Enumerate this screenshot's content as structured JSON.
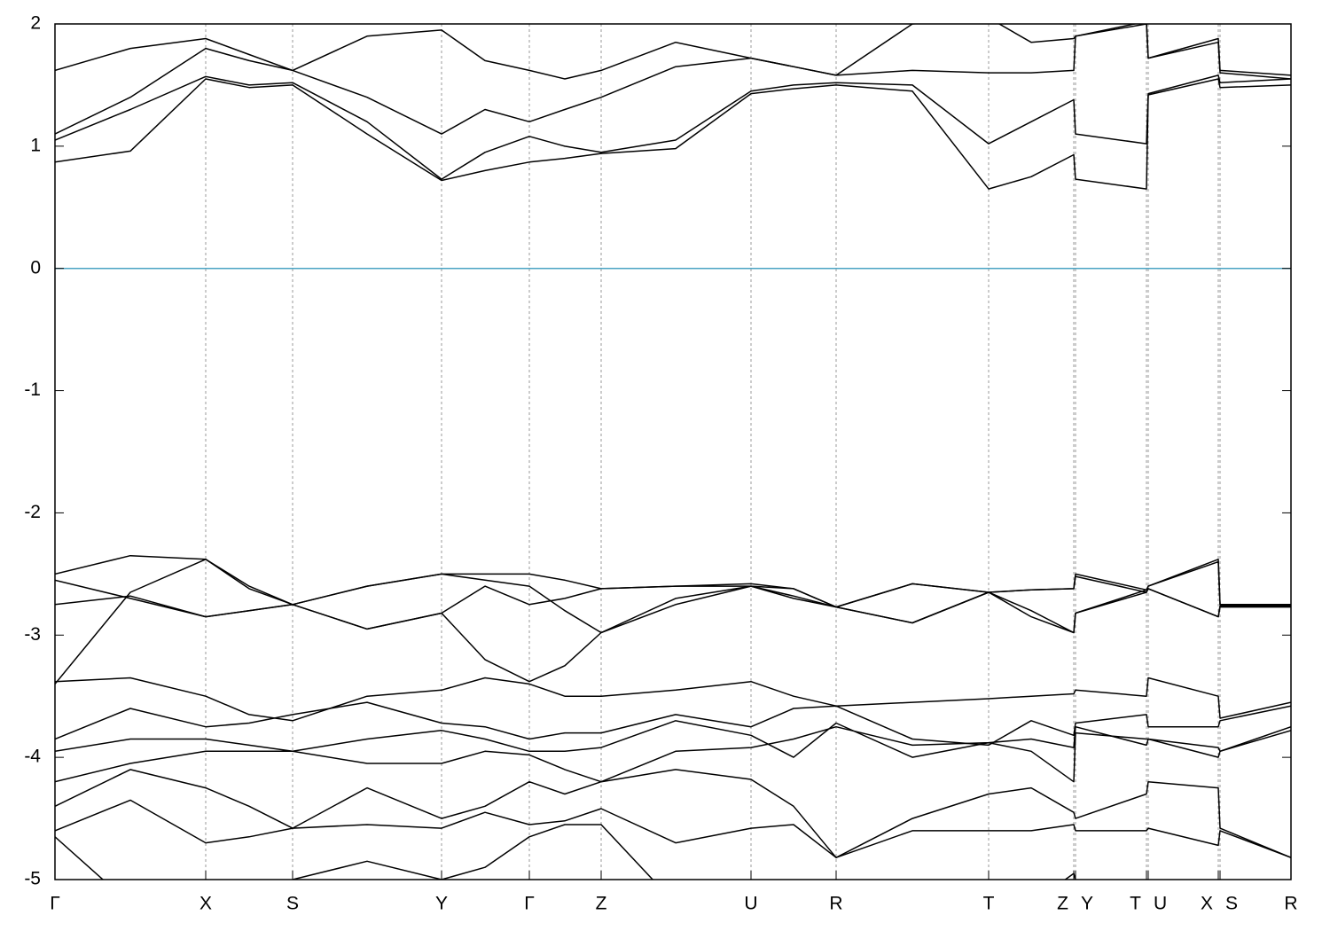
{
  "chart_data": {
    "type": "line",
    "color": "#000000",
    "fermi_level": 0,
    "fermi_color": "#4aa3c3",
    "x": [
      0,
      0.85,
      1.7,
      2.19,
      2.68,
      3.52,
      4.36,
      4.85,
      5.35,
      5.75,
      6.16,
      7.0,
      7.85,
      8.33,
      8.81,
      9.67,
      10.53,
      11.01,
      11.49,
      11.51,
      12.31,
      12.33,
      13.12,
      13.14,
      13.94
    ],
    "xlim": [
      0,
      13.94
    ],
    "xticks": [
      {
        "value": 0,
        "label": "Γ"
      },
      {
        "value": 1.7,
        "label": "X"
      },
      {
        "value": 2.68,
        "label": "S"
      },
      {
        "value": 4.36,
        "label": "Y"
      },
      {
        "value": 5.35,
        "label": "Γ"
      },
      {
        "value": 6.16,
        "label": "Z"
      },
      {
        "value": 7.85,
        "label": "U"
      },
      {
        "value": 8.81,
        "label": "R"
      },
      {
        "value": 10.53,
        "label": "T"
      },
      {
        "value": 11.49,
        "label": "Z"
      },
      {
        "value": 11.51,
        "label": "Y"
      },
      {
        "value": 12.31,
        "label": "T"
      },
      {
        "value": 12.33,
        "label": "U"
      },
      {
        "value": 13.12,
        "label": "X"
      },
      {
        "value": 13.14,
        "label": "S"
      },
      {
        "value": 13.94,
        "label": "R"
      }
    ],
    "xgrid": true,
    "ylim": [
      -5,
      2
    ],
    "yticks": [
      -5,
      -4,
      -3,
      -2,
      -1,
      0,
      1,
      2
    ],
    "series": [
      {
        "values": [
          0.87,
          0.96,
          1.55,
          1.48,
          1.5,
          1.1,
          0.72,
          0.8,
          0.87,
          0.9,
          0.94,
          0.98,
          1.43,
          1.47,
          1.5,
          1.45,
          0.65,
          0.75,
          0.93,
          0.73,
          0.65,
          1.42,
          1.55,
          1.48,
          1.5
        ]
      },
      {
        "values": [
          1.05,
          1.3,
          1.57,
          1.5,
          1.52,
          1.2,
          0.73,
          0.95,
          1.08,
          1.0,
          0.95,
          1.05,
          1.45,
          1.5,
          1.52,
          1.5,
          1.02,
          1.2,
          1.38,
          1.1,
          1.02,
          1.43,
          1.58,
          1.52,
          1.55
        ]
      },
      {
        "values": [
          1.1,
          1.4,
          1.8,
          1.7,
          1.62,
          1.4,
          1.1,
          1.3,
          1.2,
          1.3,
          1.4,
          1.65,
          1.72,
          1.65,
          1.58,
          1.62,
          1.6,
          1.6,
          1.62,
          1.9,
          2.0,
          1.72,
          1.88,
          1.62,
          1.58
        ]
      },
      {
        "values": [
          1.62,
          1.8,
          1.88,
          1.75,
          1.62,
          1.9,
          1.95,
          1.7,
          1.62,
          1.55,
          1.62,
          1.85,
          1.72,
          1.65,
          1.58,
          2.0,
          2.05,
          1.85,
          1.88,
          1.9,
          2.02,
          1.72,
          1.85,
          1.6,
          1.55
        ]
      },
      {
        "values": [
          -2.5,
          -2.35,
          -2.38,
          -2.6,
          -2.75,
          -2.6,
          -2.5,
          -2.5,
          -2.5,
          -2.55,
          -2.62,
          -2.6,
          -2.58,
          -2.62,
          -2.77,
          -2.58,
          -2.65,
          -2.63,
          -2.62,
          -2.5,
          -2.63,
          -2.6,
          -2.38,
          -2.75,
          -2.75
        ]
      },
      {
        "values": [
          -2.55,
          -2.7,
          -2.85,
          -2.8,
          -2.75,
          -2.95,
          -2.82,
          -2.6,
          -2.75,
          -2.7,
          -2.62,
          -2.6,
          -2.6,
          -2.7,
          -2.77,
          -2.9,
          -2.65,
          -2.85,
          -2.98,
          -2.82,
          -2.63,
          -2.62,
          -2.85,
          -2.76,
          -2.76
        ]
      },
      {
        "values": [
          -2.75,
          -2.68,
          -2.85,
          -2.8,
          -2.75,
          -2.95,
          -2.82,
          -3.2,
          -3.38,
          -3.25,
          -2.98,
          -2.75,
          -2.6,
          -2.68,
          -2.77,
          -2.9,
          -2.65,
          -2.8,
          -2.98,
          -2.82,
          -2.65,
          -2.62,
          -2.85,
          -2.77,
          -2.77
        ]
      },
      {
        "values": [
          -3.4,
          -2.65,
          -2.38,
          -2.62,
          -2.75,
          -2.6,
          -2.5,
          -2.55,
          -2.6,
          -2.8,
          -2.98,
          -2.7,
          -2.6,
          -2.62,
          -2.77,
          -2.58,
          -2.65,
          -2.63,
          -2.62,
          -2.52,
          -2.65,
          -2.6,
          -2.4,
          -2.75,
          -2.75
        ]
      },
      {
        "values": [
          -3.38,
          -3.35,
          -3.5,
          -3.65,
          -3.7,
          -3.5,
          -3.45,
          -3.35,
          -3.4,
          -3.5,
          -3.5,
          -3.45,
          -3.38,
          -3.5,
          -3.58,
          -3.55,
          -3.52,
          -3.5,
          -3.48,
          -3.45,
          -3.5,
          -3.35,
          -3.5,
          -3.68,
          -3.55
        ]
      },
      {
        "values": [
          -3.85,
          -3.6,
          -3.75,
          -3.72,
          -3.65,
          -3.55,
          -3.72,
          -3.75,
          -3.85,
          -3.8,
          -3.8,
          -3.65,
          -3.75,
          -3.6,
          -3.58,
          -3.85,
          -3.9,
          -3.7,
          -3.82,
          -3.72,
          -3.65,
          -3.75,
          -3.75,
          -3.7,
          -3.58
        ]
      },
      {
        "values": [
          -3.95,
          -3.85,
          -3.85,
          -3.9,
          -3.95,
          -3.85,
          -3.78,
          -3.85,
          -3.95,
          -3.95,
          -3.92,
          -3.7,
          -3.82,
          -4.0,
          -3.72,
          -4.0,
          -3.88,
          -3.95,
          -4.2,
          -3.8,
          -3.85,
          -3.85,
          -3.92,
          -3.95,
          -3.75
        ]
      },
      {
        "values": [
          -4.2,
          -4.05,
          -3.95,
          -3.95,
          -3.95,
          -4.05,
          -4.05,
          -3.95,
          -3.98,
          -4.1,
          -4.2,
          -3.95,
          -3.92,
          -3.85,
          -3.75,
          -3.9,
          -3.88,
          -3.85,
          -3.92,
          -3.75,
          -3.9,
          -3.85,
          -4.0,
          -3.95,
          -3.78
        ]
      },
      {
        "values": [
          -4.4,
          -4.1,
          -4.25,
          -4.4,
          -4.58,
          -4.25,
          -4.5,
          -4.4,
          -4.2,
          -4.3,
          -4.2,
          -4.1,
          -4.18,
          -4.4,
          -4.82,
          -4.5,
          -4.3,
          -4.25,
          -4.45,
          -4.5,
          -4.3,
          -4.2,
          -4.25,
          -4.58,
          -4.82
        ]
      },
      {
        "values": [
          -4.6,
          -4.35,
          -4.7,
          -4.65,
          -4.58,
          -4.55,
          -4.58,
          -4.45,
          -4.55,
          -4.52,
          -4.42,
          -4.7,
          -4.58,
          -4.55,
          -4.82,
          -4.6,
          -4.6,
          -4.6,
          -4.55,
          -4.6,
          -4.6,
          -4.58,
          -4.72,
          -4.6,
          -4.82
        ]
      },
      {
        "values": [
          -4.65,
          -5.2,
          -5.2,
          -5.2,
          -5.0,
          -4.85,
          -5.0,
          -4.9,
          -4.65,
          -4.55,
          -4.55,
          -5.2,
          -5.2,
          -5.2,
          -5.2,
          -5.2,
          -5.2,
          -5.2,
          -4.95,
          -5.0,
          -5.2,
          -5.2,
          -5.2,
          -5.2,
          -5.2
        ]
      }
    ]
  }
}
